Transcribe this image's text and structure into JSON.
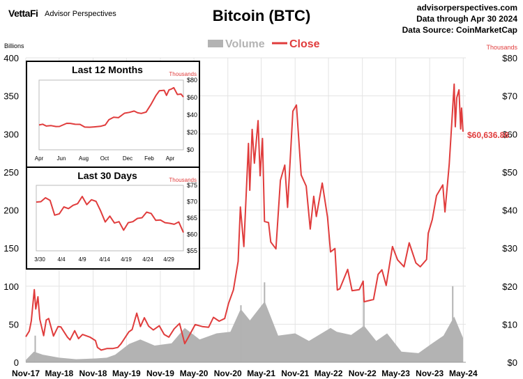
{
  "header": {
    "brand_logo": "VettaFi",
    "brand_name": "Advisor Perspectives",
    "source_lines": [
      "advisorperspectives.com",
      "Data through Apr 30 2024",
      "Data Source: CoinMarketCap"
    ]
  },
  "colors": {
    "close": "#e03c3c",
    "volume": "#b3b3b3",
    "inset_border": "#000000",
    "grid": "#e3e3e3"
  },
  "chart_data": [
    {
      "type": "line",
      "title": "Bitcoin (BTC)",
      "left_axis_unit": "Billions",
      "right_axis_unit": "Thousands",
      "legend": {
        "placement": "top-center",
        "entries": [
          "Volume",
          "Close"
        ]
      },
      "grid": true,
      "x_ticks": [
        "Nov-17",
        "May-18",
        "Nov-18",
        "May-19",
        "Nov-19",
        "May-20",
        "Nov-20",
        "May-21",
        "Nov-21",
        "May-22",
        "Nov-22",
        "May-23",
        "Nov-23",
        "May-24"
      ],
      "x_range": [
        "2017-11-01",
        "2024-05-15"
      ],
      "left_ticks": [
        "0",
        "50",
        "100",
        "150",
        "200",
        "250",
        "300",
        "350",
        "400"
      ],
      "left_ylim": [
        0,
        400
      ],
      "right_ticks": [
        "$0",
        "$10",
        "$20",
        "$30",
        "$40",
        "$50",
        "$60",
        "$70",
        "$80"
      ],
      "right_ylim": [
        0,
        80
      ],
      "last_value_label": "$60,636.86",
      "series": [
        {
          "name": "Close",
          "kind": "line",
          "values": [
            [
              "2017-11-01",
              6.7
            ],
            [
              "2017-11-20",
              8.2
            ],
            [
              "2017-12-01",
              10.9
            ],
            [
              "2017-12-17",
              19.1
            ],
            [
              "2017-12-25",
              14.0
            ],
            [
              "2018-01-06",
              17.2
            ],
            [
              "2018-01-16",
              11.3
            ],
            [
              "2018-02-06",
              7.0
            ],
            [
              "2018-02-20",
              11.1
            ],
            [
              "2018-03-05",
              11.5
            ],
            [
              "2018-03-31",
              6.9
            ],
            [
              "2018-04-25",
              9.4
            ],
            [
              "2018-05-10",
              9.3
            ],
            [
              "2018-06-15",
              6.6
            ],
            [
              "2018-06-29",
              5.9
            ],
            [
              "2018-07-24",
              8.3
            ],
            [
              "2018-08-14",
              6.2
            ],
            [
              "2018-09-05",
              7.3
            ],
            [
              "2018-10-15",
              6.6
            ],
            [
              "2018-11-14",
              5.7
            ],
            [
              "2018-11-25",
              3.9
            ],
            [
              "2018-12-15",
              3.2
            ],
            [
              "2019-01-15",
              3.6
            ],
            [
              "2019-02-15",
              3.6
            ],
            [
              "2019-03-15",
              3.9
            ],
            [
              "2019-04-02",
              4.9
            ],
            [
              "2019-05-14",
              8.0
            ],
            [
              "2019-06-01",
              8.6
            ],
            [
              "2019-06-26",
              12.9
            ],
            [
              "2019-07-16",
              9.4
            ],
            [
              "2019-08-06",
              11.7
            ],
            [
              "2019-08-29",
              9.5
            ],
            [
              "2019-09-24",
              8.5
            ],
            [
              "2019-10-26",
              9.6
            ],
            [
              "2019-11-22",
              7.3
            ],
            [
              "2019-12-17",
              6.6
            ],
            [
              "2020-01-15",
              8.8
            ],
            [
              "2020-02-13",
              10.2
            ],
            [
              "2020-03-12",
              4.9
            ],
            [
              "2020-04-01",
              6.6
            ],
            [
              "2020-05-08",
              9.9
            ],
            [
              "2020-06-15",
              9.4
            ],
            [
              "2020-07-20",
              9.2
            ],
            [
              "2020-08-15",
              11.8
            ],
            [
              "2020-09-15",
              10.8
            ],
            [
              "2020-10-15",
              11.5
            ],
            [
              "2020-11-05",
              15.5
            ],
            [
              "2020-12-01",
              19.0
            ],
            [
              "2020-12-27",
              26.5
            ],
            [
              "2021-01-08",
              40.8
            ],
            [
              "2021-01-27",
              30.4
            ],
            [
              "2021-02-21",
              57.5
            ],
            [
              "2021-02-28",
              45.2
            ],
            [
              "2021-03-13",
              61.2
            ],
            [
              "2021-03-25",
              52.3
            ],
            [
              "2021-04-14",
              63.5
            ],
            [
              "2021-04-25",
              49.0
            ],
            [
              "2021-05-08",
              58.8
            ],
            [
              "2021-05-19",
              37.0
            ],
            [
              "2021-06-10",
              36.7
            ],
            [
              "2021-06-22",
              31.6
            ],
            [
              "2021-07-20",
              29.8
            ],
            [
              "2021-08-13",
              47.8
            ],
            [
              "2021-09-06",
              51.8
            ],
            [
              "2021-09-21",
              40.7
            ],
            [
              "2021-10-20",
              66.0
            ],
            [
              "2021-11-08",
              67.6
            ],
            [
              "2021-12-04",
              49.2
            ],
            [
              "2021-12-31",
              46.3
            ],
            [
              "2022-01-22",
              35.0
            ],
            [
              "2022-02-10",
              43.6
            ],
            [
              "2022-02-24",
              38.3
            ],
            [
              "2022-03-28",
              47.1
            ],
            [
              "2022-04-26",
              38.1
            ],
            [
              "2022-05-12",
              29.0
            ],
            [
              "2022-06-05",
              29.9
            ],
            [
              "2022-06-18",
              19.0
            ],
            [
              "2022-07-01",
              19.3
            ],
            [
              "2022-08-13",
              24.4
            ],
            [
              "2022-09-06",
              18.8
            ],
            [
              "2022-10-15",
              19.1
            ],
            [
              "2022-11-05",
              21.3
            ],
            [
              "2022-11-10",
              15.9
            ],
            [
              "2022-12-31",
              16.5
            ],
            [
              "2023-01-25",
              23.1
            ],
            [
              "2023-02-15",
              24.3
            ],
            [
              "2023-03-10",
              20.2
            ],
            [
              "2023-04-13",
              30.4
            ],
            [
              "2023-05-11",
              26.9
            ],
            [
              "2023-06-15",
              25.1
            ],
            [
              "2023-07-13",
              31.4
            ],
            [
              "2023-08-18",
              26.1
            ],
            [
              "2023-09-11",
              25.1
            ],
            [
              "2023-10-15",
              27.0
            ],
            [
              "2023-10-24",
              33.9
            ],
            [
              "2023-11-15",
              37.5
            ],
            [
              "2023-12-08",
              43.8
            ],
            [
              "2024-01-11",
              46.6
            ],
            [
              "2024-01-23",
              39.5
            ],
            [
              "2024-02-15",
              52.0
            ],
            [
              "2024-03-13",
              73.1
            ],
            [
              "2024-03-19",
              61.9
            ],
            [
              "2024-03-27",
              69.5
            ],
            [
              "2024-04-08",
              71.6
            ],
            [
              "2024-04-17",
              61.3
            ],
            [
              "2024-04-22",
              66.8
            ],
            [
              "2024-04-30",
              60.6
            ]
          ]
        },
        {
          "name": "Volume",
          "kind": "area",
          "values": [
            [
              "2017-11-01",
              3
            ],
            [
              "2017-12-15",
              14
            ],
            [
              "2018-02-01",
              10
            ],
            [
              "2018-05-01",
              6
            ],
            [
              "2018-08-01",
              4
            ],
            [
              "2018-11-15",
              5
            ],
            [
              "2019-01-15",
              6
            ],
            [
              "2019-03-01",
              10
            ],
            [
              "2019-05-15",
              24
            ],
            [
              "2019-07-15",
              30
            ],
            [
              "2019-10-01",
              22
            ],
            [
              "2020-01-01",
              25
            ],
            [
              "2020-03-12",
              45
            ],
            [
              "2020-06-01",
              30
            ],
            [
              "2020-09-01",
              38
            ],
            [
              "2020-11-15",
              40
            ],
            [
              "2021-01-10",
              70
            ],
            [
              "2021-03-01",
              55
            ],
            [
              "2021-05-20",
              80
            ],
            [
              "2021-08-01",
              35
            ],
            [
              "2021-11-01",
              38
            ],
            [
              "2022-01-15",
              28
            ],
            [
              "2022-05-12",
              45
            ],
            [
              "2022-06-15",
              40
            ],
            [
              "2022-09-01",
              36
            ],
            [
              "2022-11-10",
              48
            ],
            [
              "2023-01-15",
              28
            ],
            [
              "2023-03-15",
              38
            ],
            [
              "2023-06-01",
              14
            ],
            [
              "2023-09-01",
              12
            ],
            [
              "2023-11-15",
              25
            ],
            [
              "2024-01-15",
              35
            ],
            [
              "2024-03-13",
              60
            ],
            [
              "2024-04-30",
              32
            ]
          ],
          "spikes": [
            [
              "2017-12-22",
              35
            ],
            [
              "2021-01-11",
              75
            ],
            [
              "2021-05-19",
              105
            ],
            [
              "2022-11-09",
              85
            ],
            [
              "2024-03-05",
              100
            ]
          ]
        }
      ]
    },
    {
      "type": "line",
      "title": "Last 12 Months",
      "y_unit": "Thousands",
      "x_ticks": [
        "Apr",
        "Jun",
        "Aug",
        "Oct",
        "Dec",
        "Feb",
        "Apr"
      ],
      "y_ticks": [
        "$0",
        "$20",
        "$40",
        "$60",
        "$80"
      ],
      "ylim": [
        0,
        80
      ],
      "series": [
        {
          "name": "Close",
          "values": [
            [
              0,
              28.5
            ],
            [
              0.3,
              29.4
            ],
            [
              0.6,
              27.3
            ],
            [
              1,
              27.8
            ],
            [
              1.4,
              26.7
            ],
            [
              1.7,
              26.8
            ],
            [
              2.3,
              30.4
            ],
            [
              2.6,
              30.3
            ],
            [
              3,
              29.3
            ],
            [
              3.4,
              29.2
            ],
            [
              3.8,
              26.1
            ],
            [
              4.2,
              25.9
            ],
            [
              4.6,
              26.3
            ],
            [
              5.1,
              27.0
            ],
            [
              5.5,
              28.5
            ],
            [
              5.8,
              34.5
            ],
            [
              6.2,
              37.4
            ],
            [
              6.6,
              36.9
            ],
            [
              7.1,
              42.0
            ],
            [
              7.5,
              43.0
            ],
            [
              7.9,
              44.5
            ],
            [
              8.2,
              42.5
            ],
            [
              8.5,
              41.8
            ],
            [
              8.9,
              43.3
            ],
            [
              9.3,
              51.9
            ],
            [
              9.7,
              61.9
            ],
            [
              10.0,
              67.8
            ],
            [
              10.4,
              68.3
            ],
            [
              10.6,
              62.5
            ],
            [
              10.8,
              68.7
            ],
            [
              11.0,
              69.8
            ],
            [
              11.2,
              71.3
            ],
            [
              11.5,
              63.5
            ],
            [
              11.8,
              64.0
            ],
            [
              12.0,
              60.6
            ]
          ]
        }
      ]
    },
    {
      "type": "line",
      "title": "Last 30 Days",
      "y_unit": "Thousands",
      "x_ticks": [
        "3/30",
        "4/4",
        "4/9",
        "4/14",
        "4/19",
        "4/24",
        "4/29"
      ],
      "y_ticks": [
        "$55",
        "$60",
        "$65",
        "$70",
        "$75"
      ],
      "ylim": [
        55,
        75
      ],
      "series": [
        {
          "name": "Close",
          "values": [
            [
              0,
              69.9
            ],
            [
              1,
              70.0
            ],
            [
              2,
              71.2
            ],
            [
              3,
              70.4
            ],
            [
              4,
              65.9
            ],
            [
              5,
              66.3
            ],
            [
              6,
              68.4
            ],
            [
              7,
              67.9
            ],
            [
              8,
              68.9
            ],
            [
              9,
              69.4
            ],
            [
              10,
              71.6
            ],
            [
              11,
              69.1
            ],
            [
              12,
              70.6
            ],
            [
              13,
              70.1
            ],
            [
              14,
              67.2
            ],
            [
              15,
              63.8
            ],
            [
              16,
              65.6
            ],
            [
              17,
              63.5
            ],
            [
              18,
              63.9
            ],
            [
              19,
              61.3
            ],
            [
              20,
              63.6
            ],
            [
              21,
              63.9
            ],
            [
              22,
              64.9
            ],
            [
              23,
              65.1
            ],
            [
              24,
              66.8
            ],
            [
              25,
              66.4
            ],
            [
              26,
              64.3
            ],
            [
              27,
              64.4
            ],
            [
              28,
              63.6
            ],
            [
              29,
              63.4
            ],
            [
              30,
              63.1
            ],
            [
              31,
              63.8
            ],
            [
              32,
              60.6
            ]
          ]
        }
      ]
    }
  ]
}
